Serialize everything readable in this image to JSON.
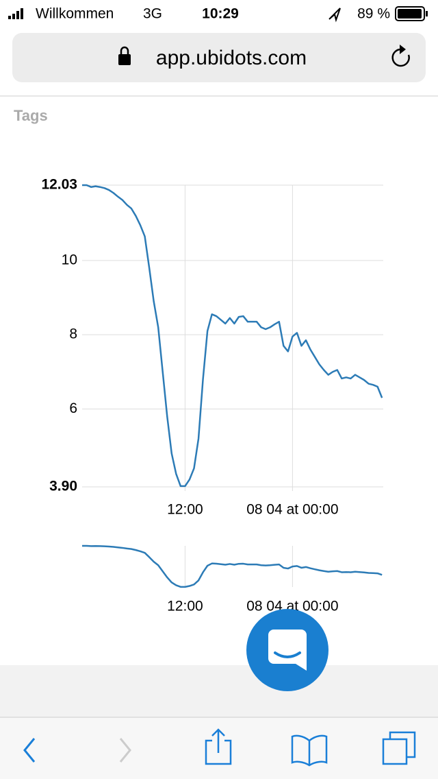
{
  "status_bar": {
    "carrier": "Willkommen",
    "network": "3G",
    "time": "10:29",
    "battery": "89 %"
  },
  "address_bar": {
    "url": "app.ubidots.com"
  },
  "section_title": "Tags",
  "chart_data": {
    "type": "line",
    "color": "#2c7bb6",
    "grid": true,
    "ylim": [
      3.9,
      12.03
    ],
    "yticks": [
      {
        "value": 3.9,
        "label": "3.90"
      },
      6,
      8,
      10,
      {
        "value": 12.03,
        "label": "12.03"
      }
    ],
    "categories": [
      null,
      null,
      null,
      null,
      null,
      null,
      null,
      null,
      null,
      null,
      null,
      null,
      null,
      null,
      null,
      null,
      null,
      null,
      null,
      null,
      null,
      null,
      null,
      "12:00",
      null,
      null,
      null,
      null,
      null,
      null,
      null,
      null,
      null,
      null,
      null,
      null,
      null,
      null,
      null,
      null,
      null,
      null,
      null,
      null,
      null,
      null,
      null,
      "08 04 at 00:00",
      null,
      null,
      null,
      null,
      null,
      null,
      null,
      null,
      null,
      null,
      null,
      null,
      null,
      null,
      null,
      null,
      null,
      null,
      null,
      null
    ],
    "values": [
      12.03,
      12.03,
      11.98,
      12.0,
      11.98,
      11.95,
      11.9,
      11.82,
      11.72,
      11.63,
      11.5,
      11.4,
      11.2,
      10.95,
      10.65,
      9.8,
      8.9,
      8.2,
      7.0,
      5.8,
      4.8,
      4.25,
      3.92,
      3.92,
      4.1,
      4.4,
      5.2,
      6.8,
      8.1,
      8.55,
      8.5,
      8.4,
      8.3,
      8.45,
      8.3,
      8.48,
      8.5,
      8.35,
      8.35,
      8.35,
      8.2,
      8.15,
      8.2,
      8.28,
      8.35,
      7.7,
      7.55,
      7.95,
      8.05,
      7.7,
      7.85,
      7.6,
      7.4,
      7.2,
      7.05,
      6.92,
      7.0,
      7.05,
      6.82,
      6.85,
      6.82,
      6.92,
      6.85,
      6.78,
      6.68,
      6.65,
      6.6,
      6.3
    ]
  }
}
